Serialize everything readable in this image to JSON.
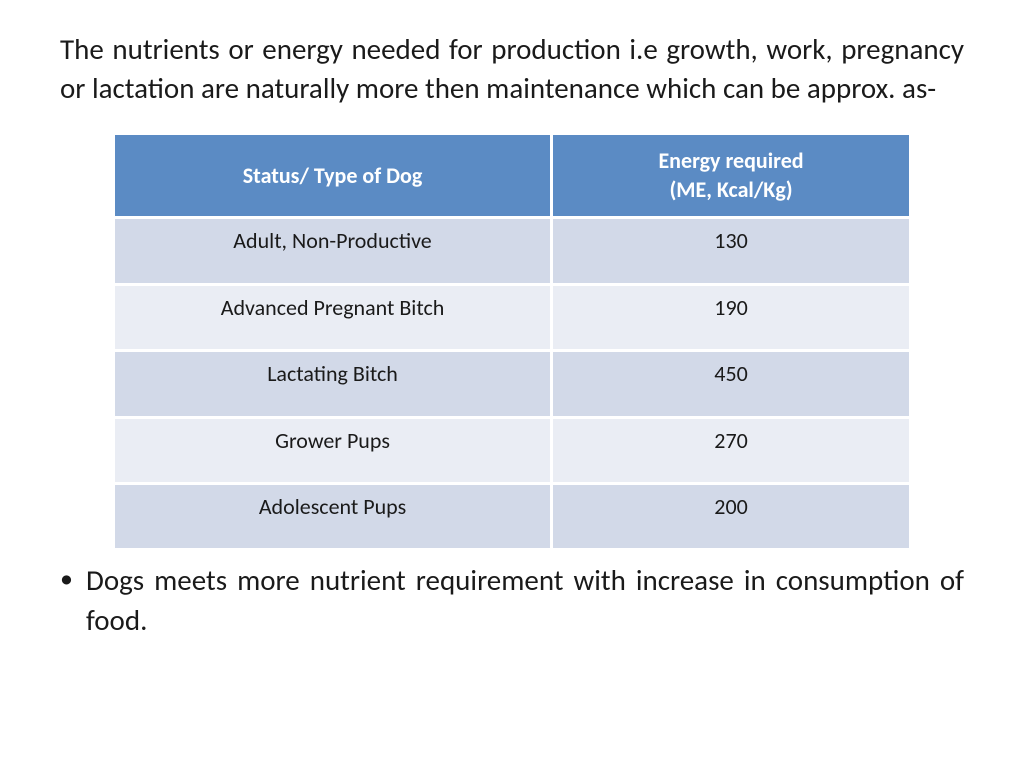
{
  "intro_text": "The nutrients or energy needed for production i.e growth, work, pregnancy or lactation are naturally more then maintenance which can be approx. as-",
  "table": {
    "header_bg": "#5b8bc4",
    "header_text_color": "#ffffff",
    "row_odd_bg": "#d2d9e8",
    "row_even_bg": "#eaedf4",
    "cell_text_color": "#1a1a1a",
    "columns": [
      "Status/ Type of Dog",
      "Energy required\n(ME, Kcal/Kg)"
    ],
    "rows": [
      [
        "Adult, Non-Productive",
        "130"
      ],
      [
        "Advanced Pregnant Bitch",
        "190"
      ],
      [
        "Lactating Bitch",
        "450"
      ],
      [
        "Grower Pups",
        "270"
      ],
      [
        "Adolescent Pups",
        "200"
      ]
    ]
  },
  "bullet1": "Dogs meets more nutrient requirement with increase in consumption of food."
}
